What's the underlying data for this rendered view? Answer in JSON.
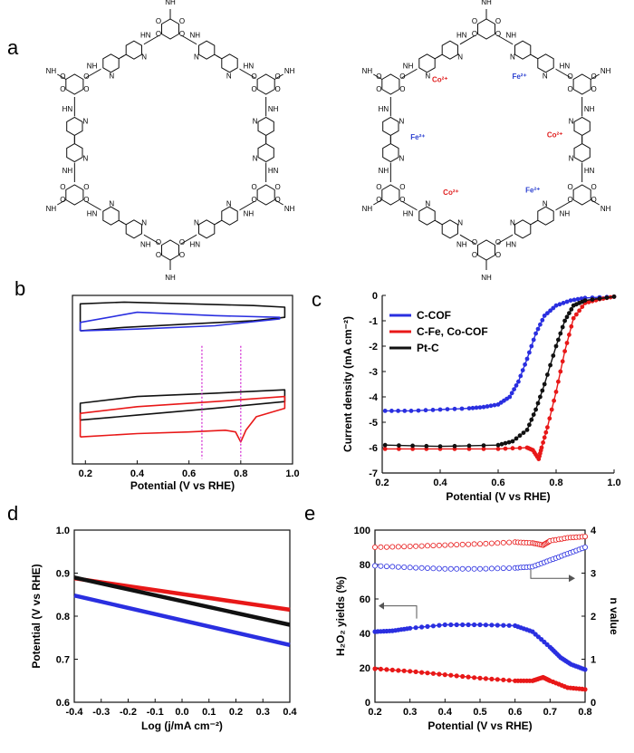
{
  "panel_labels": {
    "a": "a",
    "b": "b",
    "c": "c",
    "d": "d",
    "e": "e"
  },
  "structures": {
    "left": {
      "label_nh": "NH",
      "label_o": "O",
      "label_n": "N",
      "label_hn": "HN"
    },
    "right": {
      "ions": [
        {
          "text": "Co²⁺",
          "color": "#e02020"
        },
        {
          "text": "Fe²⁺",
          "color": "#2a3fd0"
        },
        {
          "text": "Fe²⁺",
          "color": "#2a3fd0"
        },
        {
          "text": "Co²⁺",
          "color": "#e02020"
        },
        {
          "text": "Co²⁺",
          "color": "#e02020"
        },
        {
          "text": "Fe²⁺",
          "color": "#2a3fd0"
        }
      ]
    }
  },
  "colors": {
    "blue": "#2a2fe0",
    "red": "#e81818",
    "black": "#111111",
    "magenta": "#d020d0"
  },
  "chart_data": [
    {
      "panel": "b",
      "type": "line",
      "title": "",
      "xlabel": "Potential (V vs RHE)",
      "ylabel": "",
      "xlim": [
        0.15,
        1.0
      ],
      "xticks": [
        "0.2",
        "0.4",
        "0.6",
        "0.8",
        "1.0"
      ],
      "ylim": [
        0,
        1
      ],
      "series": [
        {
          "color": "black",
          "x": [
            0.18,
            0.35,
            0.6,
            0.85,
            0.97,
            0.97,
            0.85,
            0.6,
            0.35,
            0.18,
            0.18
          ],
          "y": [
            0.79,
            0.81,
            0.83,
            0.85,
            0.87,
            0.93,
            0.94,
            0.95,
            0.96,
            0.95,
            0.79
          ]
        },
        {
          "color": "blue",
          "x": [
            0.18,
            0.4,
            0.7,
            0.95,
            0.95,
            0.7,
            0.4,
            0.18,
            0.18
          ],
          "y": [
            0.79,
            0.8,
            0.82,
            0.86,
            0.87,
            0.88,
            0.9,
            0.84,
            0.79
          ]
        },
        {
          "color": "black",
          "x": [
            0.18,
            0.4,
            0.7,
            0.97,
            0.97,
            0.7,
            0.4,
            0.18,
            0.18
          ],
          "y": [
            0.26,
            0.29,
            0.33,
            0.37,
            0.44,
            0.42,
            0.4,
            0.36,
            0.26
          ]
        },
        {
          "color": "red",
          "x": [
            0.18,
            0.4,
            0.6,
            0.74,
            0.78,
            0.8,
            0.82,
            0.86,
            0.97,
            0.97,
            0.7,
            0.4,
            0.18,
            0.18
          ],
          "y": [
            0.16,
            0.18,
            0.19,
            0.2,
            0.19,
            0.13,
            0.2,
            0.28,
            0.33,
            0.4,
            0.37,
            0.34,
            0.3,
            0.16
          ]
        }
      ],
      "vlines": [
        0.65,
        0.8
      ]
    },
    {
      "panel": "c",
      "type": "line",
      "title": "",
      "xlabel": "Potential (V vs RHE)",
      "ylabel": "Current density (mA cm⁻²)",
      "xlim": [
        0.2,
        1.0
      ],
      "ylim": [
        -7,
        0
      ],
      "xticks": [
        "0.2",
        "0.4",
        "0.6",
        "0.8",
        "1.0"
      ],
      "yticks": [
        "0",
        "-1",
        "-2",
        "-3",
        "-4",
        "-5",
        "-6",
        "-7"
      ],
      "legend": [
        "C-COF",
        "C-Fe, Co-COF",
        "Pt-C"
      ],
      "legend_position": "top-left",
      "series": [
        {
          "name": "C-COF",
          "color": "blue",
          "x": [
            0.21,
            0.3,
            0.4,
            0.5,
            0.55,
            0.6,
            0.64,
            0.67,
            0.7,
            0.73,
            0.76,
            0.8,
            0.85,
            0.9,
            1.0
          ],
          "y": [
            -4.55,
            -4.55,
            -4.5,
            -4.45,
            -4.4,
            -4.3,
            -4.0,
            -3.4,
            -2.5,
            -1.5,
            -0.8,
            -0.4,
            -0.2,
            -0.1,
            -0.05
          ]
        },
        {
          "name": "C-Fe, Co-COF",
          "color": "red",
          "x": [
            0.21,
            0.4,
            0.6,
            0.7,
            0.72,
            0.74,
            0.75,
            0.77,
            0.8,
            0.83,
            0.86,
            0.9,
            0.95,
            1.0
          ],
          "y": [
            -6.05,
            -6.05,
            -6.05,
            -6.0,
            -6.1,
            -6.45,
            -6.0,
            -5.2,
            -3.8,
            -2.2,
            -0.9,
            -0.3,
            -0.15,
            -0.05
          ]
        },
        {
          "name": "Pt-C",
          "color": "black",
          "x": [
            0.21,
            0.4,
            0.6,
            0.65,
            0.7,
            0.73,
            0.76,
            0.8,
            0.83,
            0.86,
            0.9,
            1.0
          ],
          "y": [
            -5.9,
            -5.95,
            -5.9,
            -5.75,
            -5.3,
            -4.5,
            -3.5,
            -2.0,
            -1.0,
            -0.4,
            -0.2,
            -0.05
          ]
        }
      ]
    },
    {
      "panel": "d",
      "type": "line",
      "title": "",
      "xlabel": "Log (j/mA cm⁻²)",
      "ylabel": "Potential (V vs RHE)",
      "xlim": [
        -0.4,
        0.4
      ],
      "ylim": [
        0.6,
        1.0
      ],
      "xticks": [
        "-0.4",
        "-0.3",
        "-0.2",
        "-0.1",
        "0.0",
        "0.1",
        "0.2",
        "0.3",
        "0.4"
      ],
      "yticks": [
        "0.6",
        "0.7",
        "0.8",
        "0.9",
        "1.0"
      ],
      "series": [
        {
          "color": "red",
          "x": [
            -0.4,
            0.4
          ],
          "y": [
            0.888,
            0.815
          ]
        },
        {
          "color": "black",
          "x": [
            -0.4,
            0.4
          ],
          "y": [
            0.89,
            0.78
          ]
        },
        {
          "color": "blue",
          "x": [
            -0.4,
            0.4
          ],
          "y": [
            0.848,
            0.733
          ]
        }
      ]
    },
    {
      "panel": "e",
      "type": "line",
      "title": "",
      "xlabel": "Potential (V vs RHE)",
      "ylabel_left": "H₂O₂ yields (%)",
      "ylabel_right": "n value",
      "xlim": [
        0.2,
        0.8
      ],
      "ylim_left": [
        0,
        100
      ],
      "ylim_right": [
        0,
        4
      ],
      "xticks": [
        "0.2",
        "0.3",
        "0.4",
        "0.5",
        "0.6",
        "0.7",
        "0.8"
      ],
      "yticks_left": [
        "0",
        "20",
        "40",
        "60",
        "80",
        "100"
      ],
      "yticks_right": [
        "0",
        "1",
        "2",
        "3",
        "4"
      ],
      "series": [
        {
          "color": "red",
          "axis": "right",
          "style": "open-circle",
          "x": [
            0.2,
            0.3,
            0.4,
            0.5,
            0.6,
            0.65,
            0.68,
            0.7,
            0.75,
            0.8
          ],
          "y": [
            3.6,
            3.62,
            3.65,
            3.68,
            3.72,
            3.7,
            3.65,
            3.75,
            3.82,
            3.85
          ]
        },
        {
          "color": "blue",
          "axis": "right",
          "style": "open-circle",
          "x": [
            0.2,
            0.3,
            0.4,
            0.5,
            0.6,
            0.65,
            0.7,
            0.75,
            0.8
          ],
          "y": [
            3.17,
            3.13,
            3.1,
            3.1,
            3.12,
            3.15,
            3.3,
            3.45,
            3.6
          ]
        },
        {
          "color": "blue",
          "axis": "left",
          "style": "filled",
          "x": [
            0.2,
            0.25,
            0.3,
            0.4,
            0.5,
            0.6,
            0.65,
            0.7,
            0.73,
            0.76,
            0.8
          ],
          "y": [
            41,
            41.5,
            43,
            45,
            45,
            44.5,
            41,
            32,
            26,
            22,
            19
          ]
        },
        {
          "color": "red",
          "axis": "left",
          "style": "filled",
          "x": [
            0.2,
            0.3,
            0.4,
            0.5,
            0.6,
            0.65,
            0.68,
            0.7,
            0.75,
            0.8
          ],
          "y": [
            19.5,
            18,
            16,
            14,
            12.5,
            12.5,
            14.5,
            12.5,
            8.5,
            7.5
          ]
        }
      ]
    }
  ]
}
